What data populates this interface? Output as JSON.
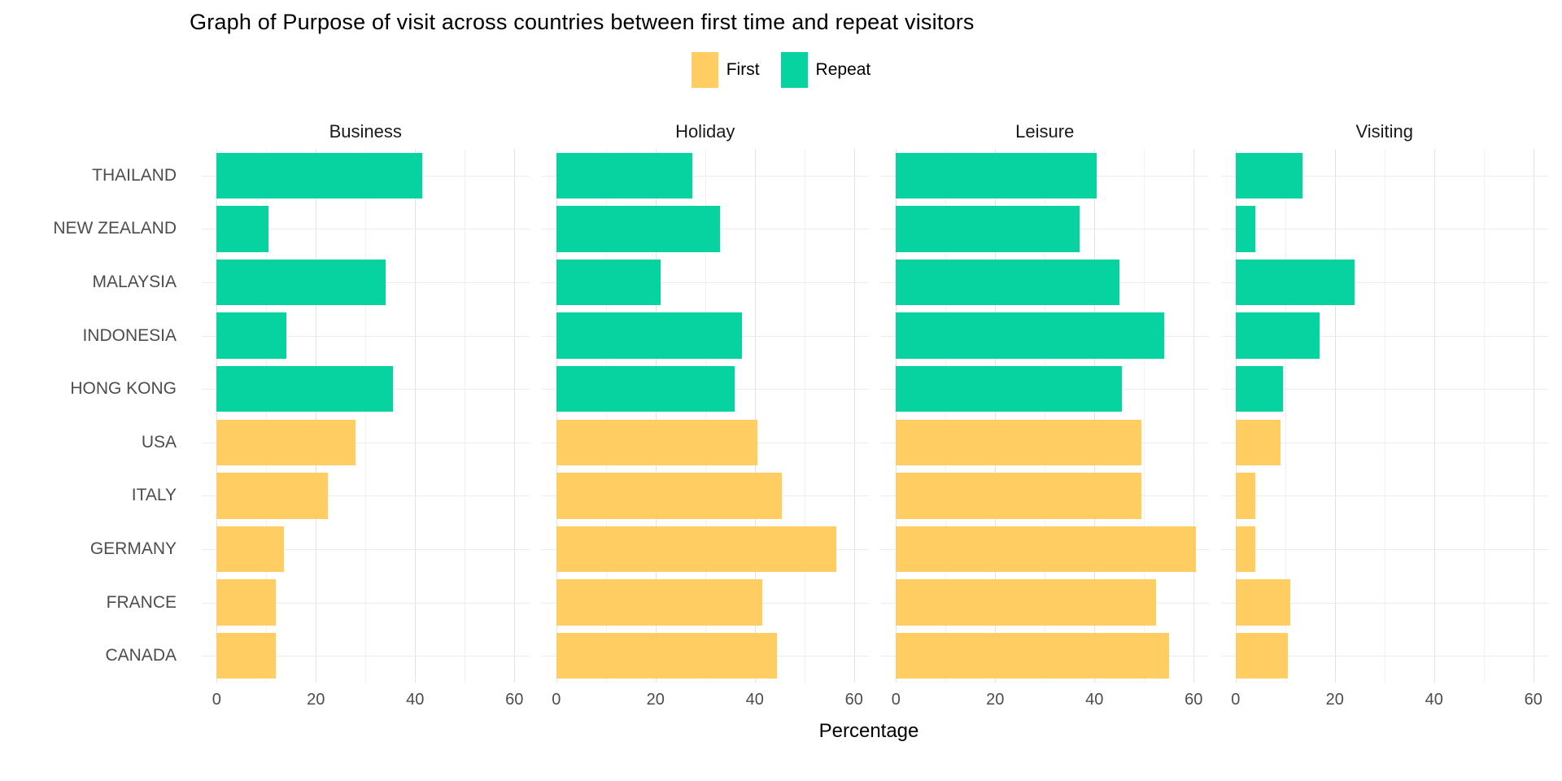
{
  "title": "Graph of Purpose of visit across countries between first time and repeat visitors",
  "legend": {
    "items": [
      {
        "label": "First",
        "color": "#FFCD61"
      },
      {
        "label": "Repeat",
        "color": "#06D3A0"
      }
    ]
  },
  "axis": {
    "xlabel": "Percentage",
    "x_major_ticks": [
      0,
      20,
      40,
      60
    ],
    "x_minor_ticks": [
      10,
      30,
      50
    ],
    "x_range_units": [
      -3,
      63
    ]
  },
  "chart_data": {
    "type": "bar",
    "orientation": "horizontal",
    "title": "Graph of Purpose of visit across countries between first time and repeat visitors",
    "xlabel": "Percentage",
    "xlim": [
      0,
      60
    ],
    "grid": "on",
    "legend_position": "top-center",
    "facets": [
      "Business",
      "Holiday",
      "Leisure",
      "Visiting"
    ],
    "categories": [
      "THAILAND",
      "NEW ZEALAND",
      "MALAYSIA",
      "INDONESIA",
      "HONG KONG",
      "USA",
      "ITALY",
      "GERMANY",
      "FRANCE",
      "CANADA"
    ],
    "category_visitor_type": [
      "Repeat",
      "Repeat",
      "Repeat",
      "Repeat",
      "Repeat",
      "First",
      "First",
      "First",
      "First",
      "First"
    ],
    "colors": {
      "First": "#FFCD61",
      "Repeat": "#06D3A0"
    },
    "series": [
      {
        "facet": "Business",
        "values": [
          41.5,
          10.5,
          34,
          14,
          35.5,
          28,
          22.5,
          13.5,
          12,
          12
        ]
      },
      {
        "facet": "Holiday",
        "values": [
          27.5,
          33,
          21,
          37.5,
          36,
          40.5,
          45.5,
          56.5,
          41.5,
          44.5
        ]
      },
      {
        "facet": "Leisure",
        "values": [
          40.5,
          37,
          45,
          54,
          45.5,
          49.5,
          49.5,
          60.5,
          52.5,
          55
        ]
      },
      {
        "facet": "Visiting",
        "values": [
          13.5,
          4,
          24,
          17,
          9.5,
          9,
          4,
          4,
          11,
          10.5
        ]
      }
    ]
  }
}
